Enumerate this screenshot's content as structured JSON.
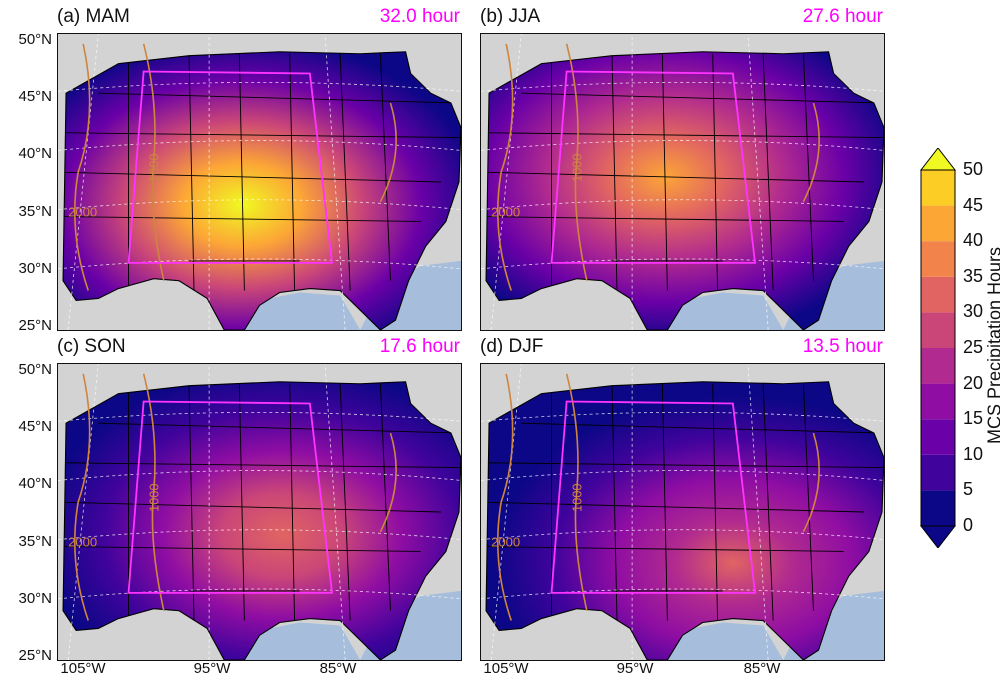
{
  "panels": [
    {
      "title": "(a) MAM",
      "value": "32.0 hour",
      "peak": 50
    },
    {
      "title": "(b) JJA",
      "value": "27.6 hour",
      "peak": 42
    },
    {
      "title": "(c) SON",
      "value": "17.6 hour",
      "peak": 30
    },
    {
      "title": "(d) DJF",
      "value": "13.5 hour",
      "peak": 28
    }
  ],
  "lat_labels": [
    "50°N",
    "45°N",
    "40°N",
    "35°N",
    "30°N",
    "25°N"
  ],
  "lon_labels": [
    "105°W",
    "95°W",
    "85°W"
  ],
  "contour_labels": [
    "1000",
    "2000"
  ],
  "colorbar": {
    "title": "MCS Precipitation Hours",
    "ticks": [
      "0",
      "5",
      "10",
      "15",
      "20",
      "25",
      "30",
      "35",
      "40",
      "45",
      "50"
    ],
    "min": 0,
    "max": 50,
    "colors": [
      "#0c0786",
      "#40039c",
      "#6a00a7",
      "#8f0da3",
      "#b02a8f",
      "#ca4678",
      "#e16462",
      "#f1834b",
      "#fca636",
      "#fccd25",
      "#f0f921"
    ]
  },
  "colors": {
    "highlight_box": "#ff33ff",
    "value_text": "#ff00ff",
    "contour": "#cd853f",
    "ocean": "#a6bddb",
    "land_masked": "#d3d3d3"
  }
}
